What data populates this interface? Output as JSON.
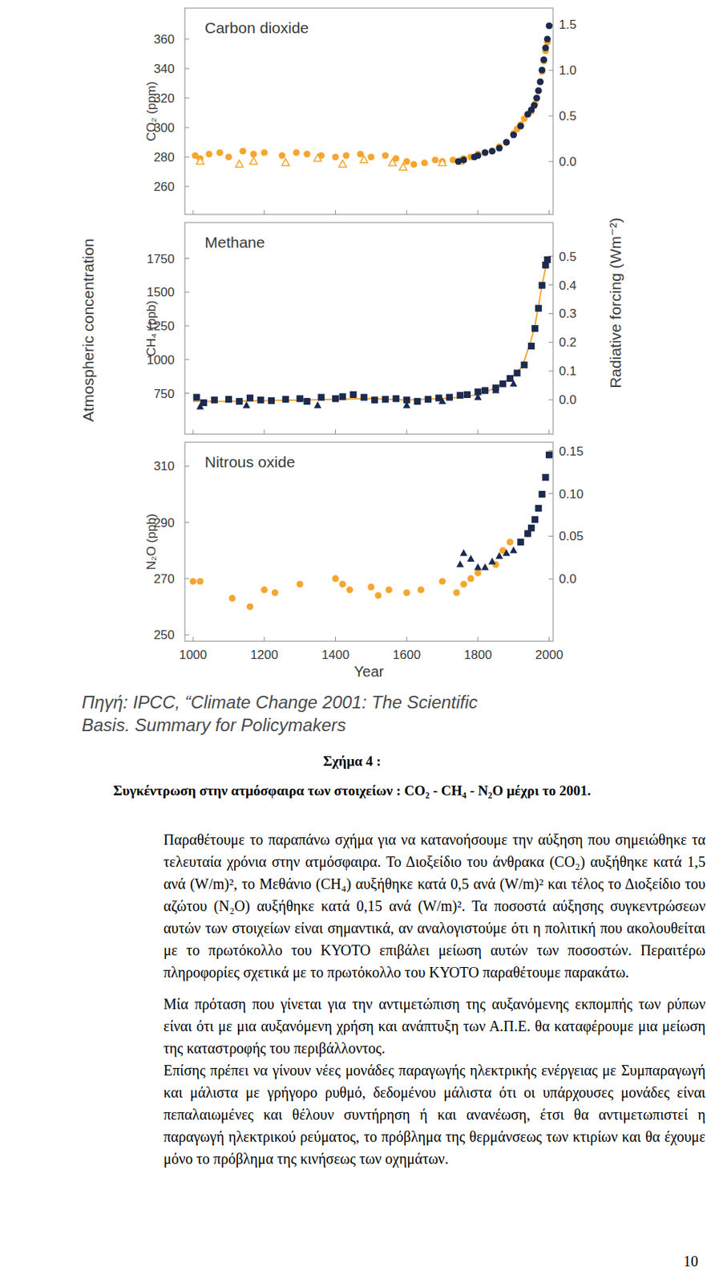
{
  "figure": {
    "ylabel": "Atmospheric concentration",
    "y2label": "Radiative forcing (Wm⁻²)",
    "source": [
      "Πηγή: IPCC, “Climate Change 2001: The Scientific",
      "Basis. Summary for Policymakers"
    ]
  },
  "chart_data": [
    {
      "type": "scatter",
      "title": "Carbon dioxide",
      "ylabel": "CO₂ (ppm)",
      "xlim": [
        977,
        2011
      ],
      "xticks": [
        1000,
        1200,
        1400,
        1600,
        1800,
        2000
      ],
      "tick_labels": "y",
      "grid": false,
      "ylim": [
        241,
        381
      ],
      "yticks": [
        260,
        280,
        300,
        320,
        340,
        360
      ],
      "y2lim": [
        -0.58,
        1.68
      ],
      "y2ticks": [
        {
          "value": 0,
          "label": "0.0"
        },
        {
          "value": 0.5,
          "label": "0.5"
        },
        {
          "value": 1,
          "label": "1.0"
        },
        {
          "value": 1.5,
          "label": "1.5"
        }
      ],
      "series": [
        {
          "color": "#f5a630",
          "marker": "circle",
          "x": [
            1006,
            1020,
            1045,
            1075,
            1100,
            1140,
            1170,
            1200,
            1250,
            1290,
            1320,
            1360,
            1400,
            1430,
            1470,
            1500,
            1540,
            1570,
            1600,
            1620,
            1650,
            1680,
            1700,
            1730,
            1760,
            1780,
            1800,
            1820,
            1840,
            1860,
            1880,
            1900,
            1910,
            1920,
            1930,
            1940,
            1950,
            1960,
            1965,
            1970,
            1975,
            1980,
            1985,
            1990,
            1995
          ],
          "values": [
            281,
            279,
            282,
            283,
            280,
            284,
            282,
            283,
            281,
            283,
            282,
            281,
            280,
            281,
            282,
            280,
            281,
            279,
            277,
            275,
            276,
            278,
            277,
            278,
            279,
            280,
            282,
            283,
            284,
            287,
            290,
            296,
            299,
            302,
            306,
            309,
            311,
            316,
            320,
            325,
            331,
            338,
            345,
            352,
            358
          ]
        },
        {
          "color": "#f5a630",
          "marker": "triangle-open",
          "x": [
            1020,
            1130,
            1170,
            1260,
            1350,
            1420,
            1480,
            1560,
            1590,
            1700,
            1750
          ],
          "values": [
            277,
            275,
            277,
            276,
            279,
            275,
            278,
            276,
            273,
            276,
            277
          ]
        },
        {
          "color": "#1b2a4e",
          "marker": "circle",
          "x": [
            1745,
            1760,
            1790,
            1800,
            1820,
            1840,
            1860,
            1880,
            1900,
            1920,
            1940,
            1950,
            1958,
            1965,
            1970,
            1975,
            1980,
            1985,
            1990,
            1995,
            2000
          ],
          "values": [
            277,
            278,
            280,
            281,
            283,
            284,
            286,
            290,
            295,
            301,
            309,
            312,
            315,
            320,
            325,
            331,
            339,
            346,
            354,
            360,
            369
          ]
        }
      ]
    },
    {
      "type": "scatter",
      "title": "Methane",
      "ylabel": "CH₄ (ppb)",
      "xlim": [
        977,
        2011
      ],
      "xticks": [
        1000,
        1200,
        1400,
        1600,
        1800,
        2000
      ],
      "tick_labels": "y",
      "grid": false,
      "ylim": [
        447,
        2015
      ],
      "yticks": [
        750,
        1000,
        1250,
        1500,
        1750
      ],
      "y2lim": [
        -0.12,
        0.617
      ],
      "y2ticks": [
        {
          "value": 0,
          "label": "0.0"
        },
        0.1,
        0.2,
        0.3,
        0.4,
        0.5
      ],
      "series": [
        {
          "type": "line",
          "color": "#f5a630",
          "line_style": "solid",
          "x": [
            1000,
            1100,
            1200,
            1300,
            1400,
            1500,
            1600,
            1700,
            1750,
            1800,
            1850,
            1900,
            1925,
            1950,
            1960,
            1970,
            1980,
            1990,
            2000
          ],
          "values": [
            690,
            690,
            695,
            700,
            705,
            710,
            700,
            710,
            720,
            740,
            790,
            880,
            950,
            1150,
            1250,
            1400,
            1550,
            1680,
            1750
          ]
        },
        {
          "color": "#1b2a4e",
          "marker": "square",
          "x": [
            1010,
            1030,
            1060,
            1100,
            1130,
            1160,
            1190,
            1220,
            1260,
            1300,
            1320,
            1360,
            1400,
            1420,
            1450,
            1480,
            1510,
            1540,
            1570,
            1600,
            1630,
            1660,
            1690,
            1720,
            1750,
            1770,
            1800,
            1820,
            1850,
            1870,
            1890,
            1910,
            1930,
            1950,
            1960,
            1970,
            1980,
            1990,
            1995
          ],
          "values": [
            720,
            680,
            700,
            705,
            690,
            715,
            700,
            695,
            705,
            710,
            690,
            720,
            710,
            725,
            740,
            720,
            700,
            705,
            710,
            700,
            690,
            705,
            715,
            720,
            735,
            740,
            760,
            770,
            790,
            820,
            860,
            900,
            960,
            1100,
            1230,
            1380,
            1550,
            1700,
            1740
          ]
        },
        {
          "color": "#1b2a4e",
          "marker": "triangle",
          "x": [
            1020,
            1150,
            1350,
            1600,
            1700,
            1800,
            1850,
            1900
          ],
          "values": [
            650,
            660,
            660,
            660,
            690,
            720,
            770,
            820
          ]
        }
      ]
    },
    {
      "type": "scatter",
      "title": "Nitrous oxide",
      "ylabel": "N₂O (ppb)",
      "xlabel": "Year",
      "xlim": [
        977,
        2011
      ],
      "xticks": [
        1000,
        1200,
        1400,
        1600,
        1800,
        2000
      ],
      "grid": false,
      "ylim": [
        247.7,
        318.5
      ],
      "yticks": [
        250,
        270,
        290,
        310
      ],
      "y2lim": [
        -0.073,
        0.16
      ],
      "y2ticks": [
        {
          "value": 0,
          "label": "0.0"
        },
        0.05,
        {
          "value": 0.1,
          "label": "0.10"
        },
        0.15
      ],
      "series": [
        {
          "color": "#f5a630",
          "marker": "circle",
          "x": [
            1000,
            1020,
            1110,
            1160,
            1200,
            1230,
            1300,
            1400,
            1420,
            1440,
            1500,
            1520,
            1550,
            1600,
            1640,
            1700,
            1740,
            1760,
            1780,
            1800,
            1850,
            1870,
            1890,
            1940
          ],
          "values": [
            269,
            269,
            263,
            260,
            266,
            265,
            268,
            270,
            268,
            266,
            267,
            264,
            266,
            265,
            266,
            269,
            265,
            268,
            270,
            272,
            275,
            280,
            283,
            286
          ]
        },
        {
          "color": "#1b2a4e",
          "marker": "triangle",
          "x": [
            1750,
            1760,
            1780,
            1800,
            1820,
            1840,
            1860,
            1880,
            1900
          ],
          "values": [
            275,
            279,
            277,
            274,
            274,
            276,
            278,
            279,
            280
          ]
        },
        {
          "color": "#1b2a4e",
          "marker": "square",
          "x": [
            1920,
            1940,
            1950,
            1960,
            1970,
            1980,
            1990,
            2000
          ],
          "values": [
            283,
            286,
            288,
            291,
            295,
            300,
            306,
            314
          ]
        }
      ]
    }
  ],
  "caption": {
    "label": "Σχήμα 4 :",
    "text": "Συγκέντρωση στην ατμόσφαιρα των στοιχείων : CO₂ - CH₄ - N₂O μέχρι το 2001."
  },
  "paragraphs": [
    "Παραθέτουμε το παραπάνω σχήμα για να κατανοήσουμε την αύξηση που σημειώθηκε τα τελευταία χρόνια στην ατμόσφαιρα. Το Διοξείδιο του άνθρακα (CO₂) αυξήθηκε κατά 1,5 ανά (W/m)², το Μεθάνιο (CH₄) αυξήθηκε κατά 0,5 ανά (W/m)² και τέλος το Διοξείδιο του αζώτου (N₂O) αυξήθηκε κατά 0,15 ανά (W/m)². Τα ποσοστά αύξησης συγκεντρώσεων αυτών των στοιχείων είναι σημαντικά, αν αναλογιστούμε ότι η πολιτική που ακολουθείται με το πρωτόκολλο του ΚΥΟΤΟ επιβάλει μείωση αυτών των ποσοστών. Περαιτέρω πληροφορίες σχετικά με το πρωτόκολλο του ΚΥΟΤΟ παραθέτουμε παρακάτω.",
    "Μία πρόταση που γίνεται για την αντιμετώπιση της αυξανόμενης εκπομπής των ρύπων είναι ότι με μια αυξανόμενη χρήση και ανάπτυξη των Α.Π.Ε. θα καταφέρουμε μια μείωση της καταστροφής του περιβάλλοντος.",
    "Επίσης πρέπει να γίνουν νέες μονάδες παραγωγής ηλεκτρικής ενέργειας με Συμπαραγωγή και μάλιστα με γρήγορο ρυθμό, δεδομένου μάλιστα ότι οι υπάρχουσες μονάδες είναι πεπαλαιωμένες και θέλουν συντήρηση ή και ανανέωση, έτσι θα αντιμετωπιστεί η παραγωγή ηλεκτρικού ρεύματος, το πρόβλημα της θερμάνσεως των κτιρίων και θα έχουμε μόνο το πρόβλημα της κινήσεως των οχημάτων."
  ],
  "page_number": "10"
}
